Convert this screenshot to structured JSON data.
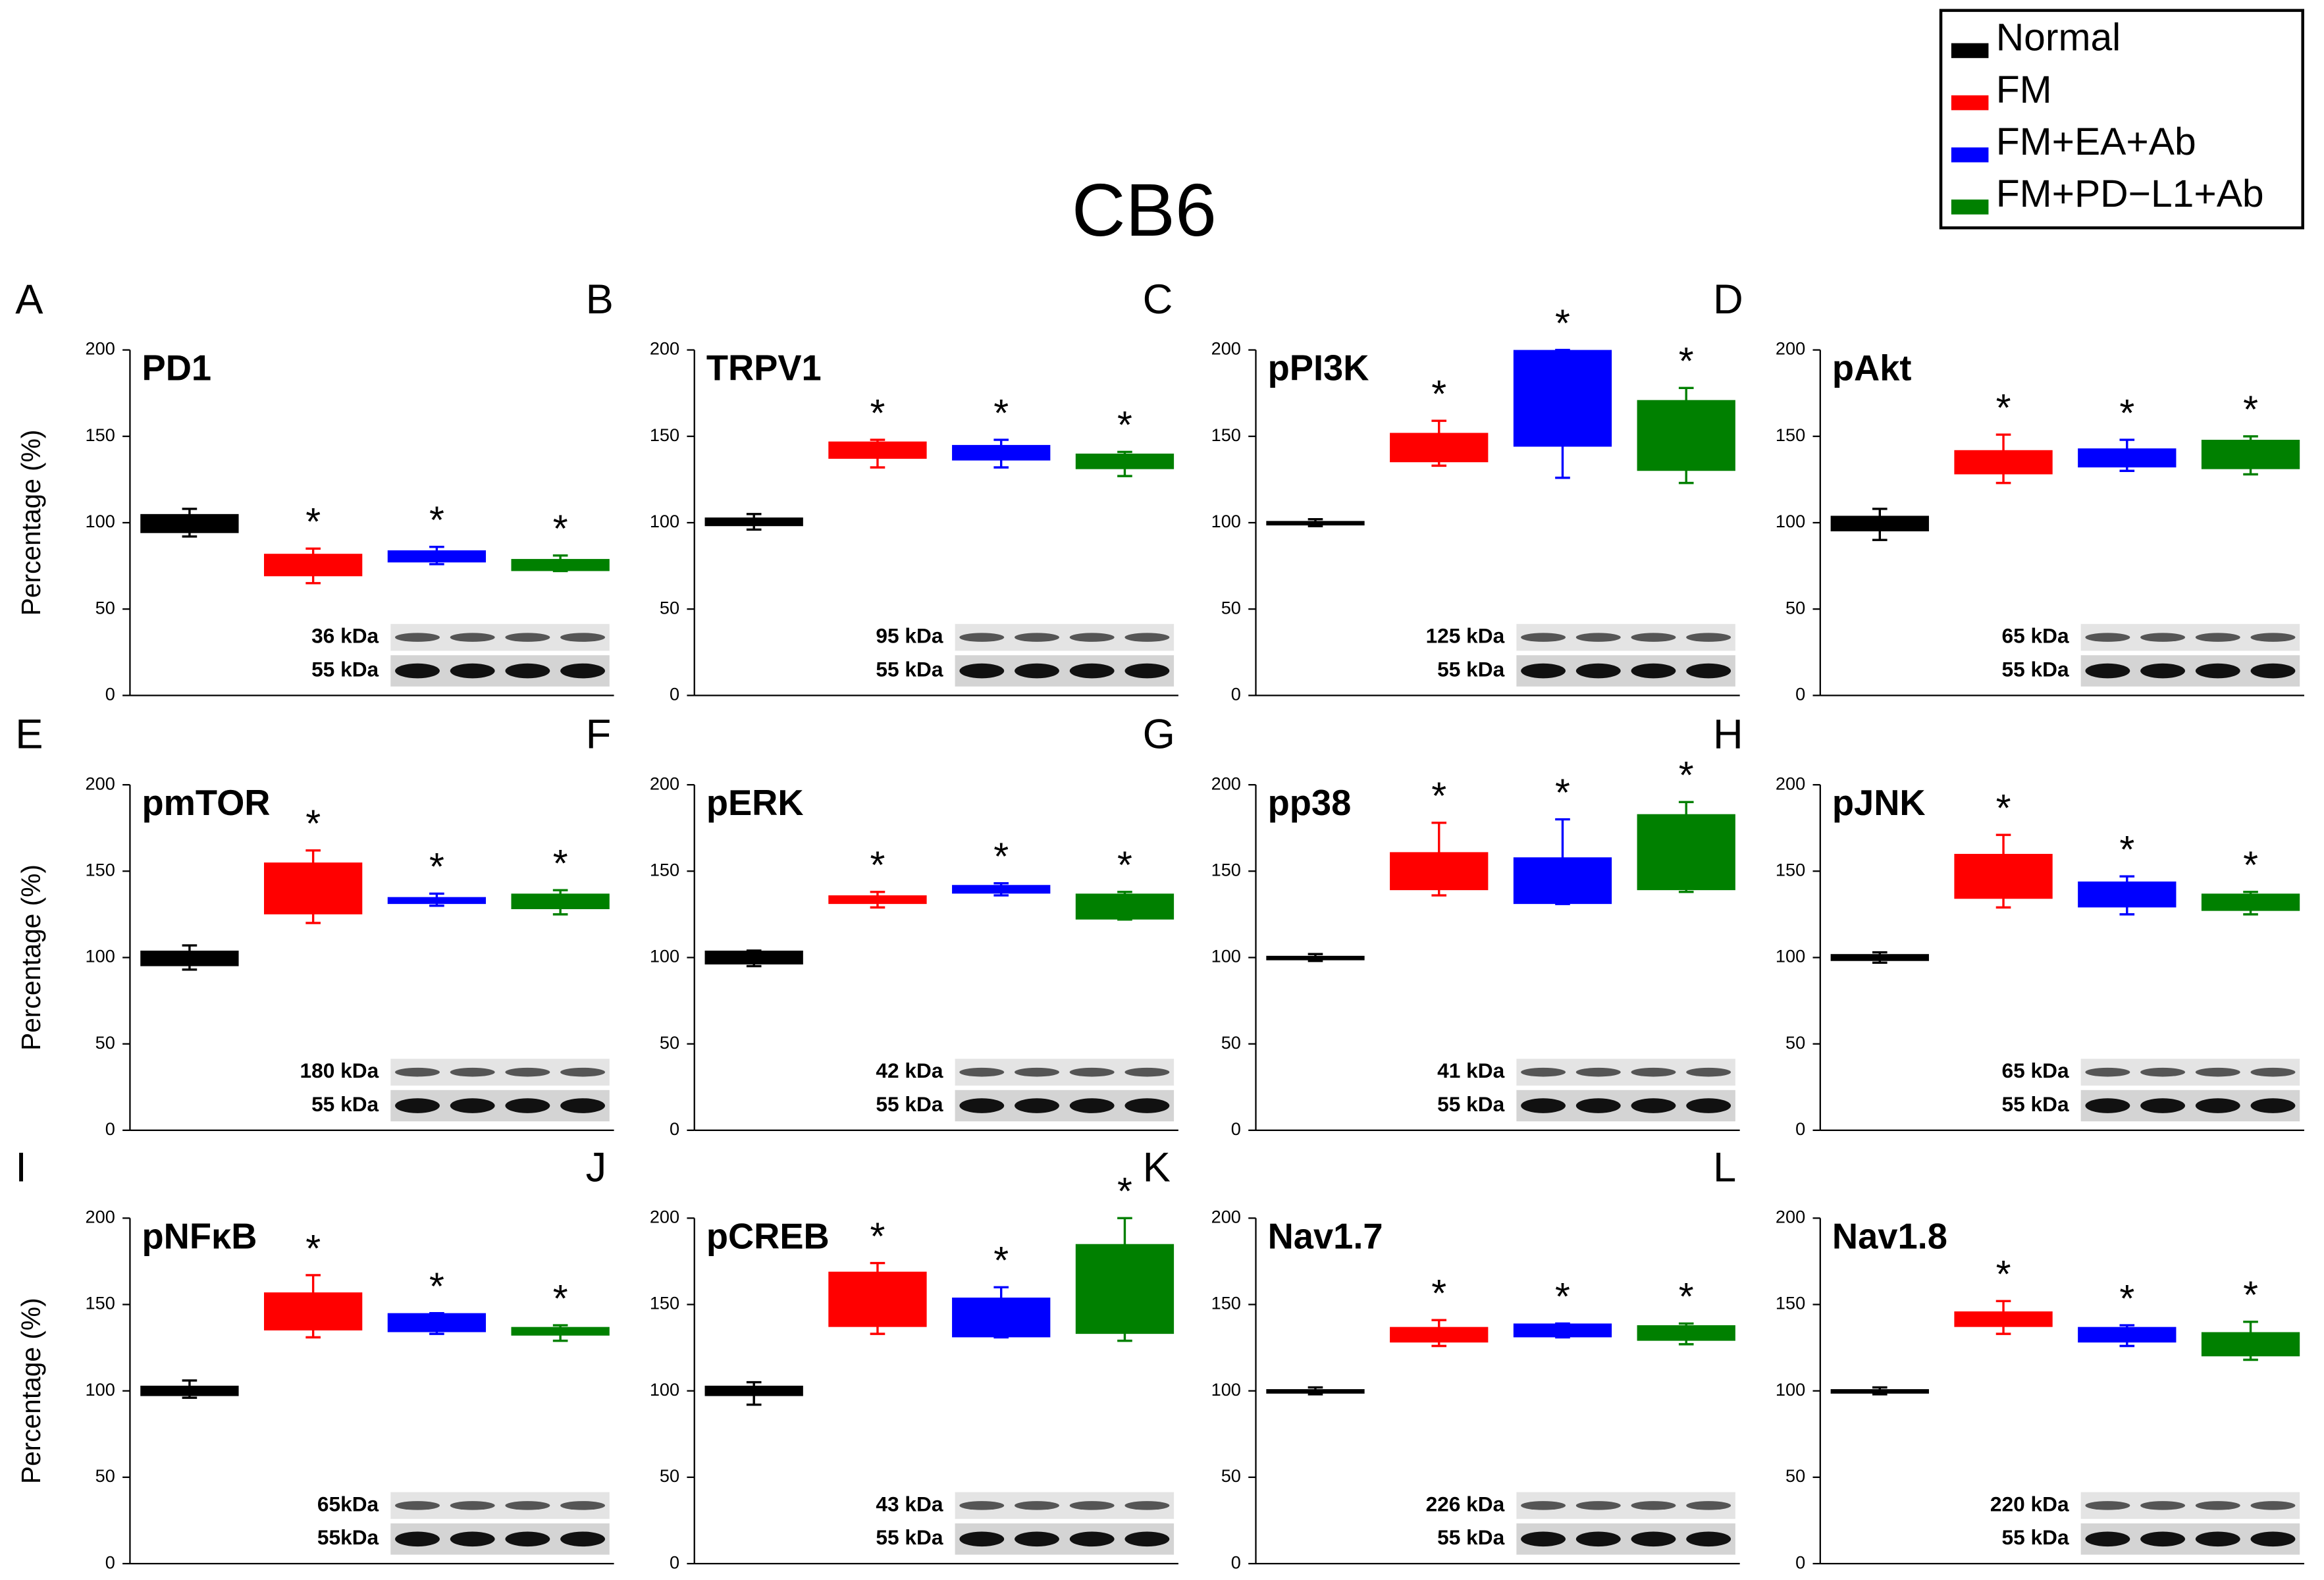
{
  "title": "CB6",
  "legend": [
    {
      "name": "Normal",
      "color": "#000000"
    },
    {
      "name": "FM",
      "color": "#ff0000"
    },
    {
      "name": "FM+EA+Ab",
      "color": "#0000ff"
    },
    {
      "name": "FM+PD−L1+Ab",
      "color": "#008000"
    }
  ],
  "chart_data": [
    {
      "type": "box",
      "label": "A",
      "title": "PD1",
      "ylabel": "Percentage (%)",
      "ylim": [
        0,
        200
      ],
      "yticks": [
        0,
        50,
        100,
        150,
        200
      ],
      "boxes": [
        {
          "low": 92,
          "q1": 94,
          "q3": 105,
          "high": 108
        },
        {
          "low": 65,
          "q1": 69,
          "q3": 82,
          "high": 85
        },
        {
          "low": 76,
          "q1": 77,
          "q3": 84,
          "high": 86
        },
        {
          "low": 72,
          "q1": 72,
          "q3": 79,
          "high": 81
        }
      ],
      "annotations": [
        null,
        "*",
        "*",
        "*"
      ],
      "blot_labels": [
        "36 kDa",
        "55 kDa"
      ]
    },
    {
      "type": "box",
      "label": "B",
      "title": "TRPV1",
      "ylim": [
        0,
        200
      ],
      "yticks": [
        0,
        50,
        100,
        150,
        200
      ],
      "boxes": [
        {
          "low": 96,
          "q1": 98,
          "q3": 103,
          "high": 105
        },
        {
          "low": 132,
          "q1": 137,
          "q3": 147,
          "high": 148
        },
        {
          "low": 132,
          "q1": 136,
          "q3": 145,
          "high": 148
        },
        {
          "low": 127,
          "q1": 131,
          "q3": 140,
          "high": 141
        }
      ],
      "annotations": [
        null,
        "*",
        "*",
        "*"
      ],
      "blot_labels": [
        "95 kDa",
        "55 kDa"
      ]
    },
    {
      "type": "box",
      "label": "C",
      "title": "pPI3K",
      "ylim": [
        0,
        200
      ],
      "yticks": [
        0,
        50,
        100,
        150,
        200
      ],
      "boxes": [
        {
          "low": 98,
          "q1": 99,
          "q3": 101,
          "high": 102
        },
        {
          "low": 133,
          "q1": 135,
          "q3": 152,
          "high": 159
        },
        {
          "low": 126,
          "q1": 144,
          "q3": 200,
          "high": 200
        },
        {
          "low": 123,
          "q1": 130,
          "q3": 171,
          "high": 178
        }
      ],
      "annotations": [
        null,
        "*",
        "*",
        "*"
      ],
      "blot_labels": [
        "125 kDa",
        "55 kDa"
      ]
    },
    {
      "type": "box",
      "label": "D",
      "title": "pAkt",
      "ylim": [
        0,
        200
      ],
      "yticks": [
        0,
        50,
        100,
        150,
        200
      ],
      "boxes": [
        {
          "low": 90,
          "q1": 95,
          "q3": 104,
          "high": 108
        },
        {
          "low": 123,
          "q1": 128,
          "q3": 142,
          "high": 151
        },
        {
          "low": 130,
          "q1": 132,
          "q3": 143,
          "high": 148
        },
        {
          "low": 128,
          "q1": 131,
          "q3": 148,
          "high": 150
        }
      ],
      "annotations": [
        null,
        "*",
        "*",
        "*"
      ],
      "blot_labels": [
        "65 kDa",
        "55 kDa"
      ]
    },
    {
      "type": "box",
      "label": "E",
      "title": "pmTOR",
      "ylabel": "Percentage (%)",
      "ylim": [
        0,
        200
      ],
      "yticks": [
        0,
        50,
        100,
        150,
        200
      ],
      "boxes": [
        {
          "low": 93,
          "q1": 95,
          "q3": 104,
          "high": 107
        },
        {
          "low": 120,
          "q1": 125,
          "q3": 155,
          "high": 162
        },
        {
          "low": 130,
          "q1": 131,
          "q3": 135,
          "high": 137
        },
        {
          "low": 125,
          "q1": 128,
          "q3": 137,
          "high": 139
        }
      ],
      "annotations": [
        null,
        "*",
        "*",
        "*"
      ],
      "blot_labels": [
        "180 kDa",
        "55 kDa"
      ]
    },
    {
      "type": "box",
      "label": "F",
      "title": "pERK",
      "ylim": [
        0,
        200
      ],
      "yticks": [
        0,
        50,
        100,
        150,
        200
      ],
      "boxes": [
        {
          "low": 95,
          "q1": 96,
          "q3": 104,
          "high": 104
        },
        {
          "low": 129,
          "q1": 131,
          "q3": 136,
          "high": 138
        },
        {
          "low": 136,
          "q1": 137,
          "q3": 142,
          "high": 143
        },
        {
          "low": 122,
          "q1": 122,
          "q3": 137,
          "high": 138
        }
      ],
      "annotations": [
        null,
        "*",
        "*",
        "*"
      ],
      "blot_labels": [
        "42 kDa",
        "55 kDa"
      ]
    },
    {
      "type": "box",
      "label": "G",
      "title": "pp38",
      "ylim": [
        0,
        200
      ],
      "yticks": [
        0,
        50,
        100,
        150,
        200
      ],
      "boxes": [
        {
          "low": 98,
          "q1": 99,
          "q3": 101,
          "high": 102
        },
        {
          "low": 136,
          "q1": 139,
          "q3": 161,
          "high": 178
        },
        {
          "low": 131,
          "q1": 131,
          "q3": 158,
          "high": 180
        },
        {
          "low": 138,
          "q1": 139,
          "q3": 183,
          "high": 190
        }
      ],
      "annotations": [
        null,
        "*",
        "*",
        "*"
      ],
      "blot_labels": [
        "41 kDa",
        "55 kDa"
      ]
    },
    {
      "type": "box",
      "label": "H",
      "title": "pJNK",
      "ylim": [
        0,
        200
      ],
      "yticks": [
        0,
        50,
        100,
        150,
        200
      ],
      "boxes": [
        {
          "low": 97,
          "q1": 98,
          "q3": 102,
          "high": 103
        },
        {
          "low": 129,
          "q1": 134,
          "q3": 160,
          "high": 171
        },
        {
          "low": 125,
          "q1": 129,
          "q3": 144,
          "high": 147
        },
        {
          "low": 125,
          "q1": 127,
          "q3": 137,
          "high": 138
        }
      ],
      "annotations": [
        null,
        "*",
        "*",
        "*"
      ],
      "blot_labels": [
        "65 kDa",
        "55 kDa"
      ]
    },
    {
      "type": "box",
      "label": "I",
      "title": "pNFκB",
      "ylabel": "Percentage (%)",
      "ylim": [
        0,
        200
      ],
      "yticks": [
        0,
        50,
        100,
        150,
        200
      ],
      "boxes": [
        {
          "low": 96,
          "q1": 97,
          "q3": 103,
          "high": 106
        },
        {
          "low": 131,
          "q1": 135,
          "q3": 157,
          "high": 167
        },
        {
          "low": 133,
          "q1": 134,
          "q3": 145,
          "high": 145
        },
        {
          "low": 129,
          "q1": 132,
          "q3": 137,
          "high": 138
        }
      ],
      "annotations": [
        null,
        "*",
        "*",
        "*"
      ],
      "blot_labels": [
        "65kDa",
        "55kDa"
      ]
    },
    {
      "type": "box",
      "label": "J",
      "title": "pCREB",
      "ylim": [
        0,
        200
      ],
      "yticks": [
        0,
        50,
        100,
        150,
        200
      ],
      "boxes": [
        {
          "low": 92,
          "q1": 97,
          "q3": 103,
          "high": 105
        },
        {
          "low": 133,
          "q1": 137,
          "q3": 169,
          "high": 174
        },
        {
          "low": 131,
          "q1": 131,
          "q3": 154,
          "high": 160
        },
        {
          "low": 129,
          "q1": 133,
          "q3": 185,
          "high": 200
        }
      ],
      "annotations": [
        null,
        "*",
        "*",
        "*"
      ],
      "blot_labels": [
        "43 kDa",
        "55 kDa"
      ]
    },
    {
      "type": "box",
      "label": "K",
      "title": "Nav1.7",
      "ylim": [
        0,
        200
      ],
      "yticks": [
        0,
        50,
        100,
        150,
        200
      ],
      "boxes": [
        {
          "low": 98,
          "q1": 99,
          "q3": 101,
          "high": 102
        },
        {
          "low": 126,
          "q1": 128,
          "q3": 137,
          "high": 141
        },
        {
          "low": 131,
          "q1": 131,
          "q3": 139,
          "high": 139
        },
        {
          "low": 127,
          "q1": 129,
          "q3": 138,
          "high": 139
        }
      ],
      "annotations": [
        null,
        "*",
        "*",
        "*"
      ],
      "blot_labels": [
        "226 kDa",
        "55 kDa"
      ]
    },
    {
      "type": "box",
      "label": "L",
      "title": "Nav1.8",
      "ylim": [
        0,
        200
      ],
      "yticks": [
        0,
        50,
        100,
        150,
        200
      ],
      "boxes": [
        {
          "low": 98,
          "q1": 99,
          "q3": 101,
          "high": 102
        },
        {
          "low": 133,
          "q1": 137,
          "q3": 146,
          "high": 152
        },
        {
          "low": 126,
          "q1": 128,
          "q3": 137,
          "high": 138
        },
        {
          "low": 118,
          "q1": 120,
          "q3": 134,
          "high": 140
        }
      ],
      "annotations": [
        null,
        "*",
        "*",
        "*"
      ],
      "blot_labels": [
        "220 kDa",
        "55 kDa"
      ]
    }
  ]
}
